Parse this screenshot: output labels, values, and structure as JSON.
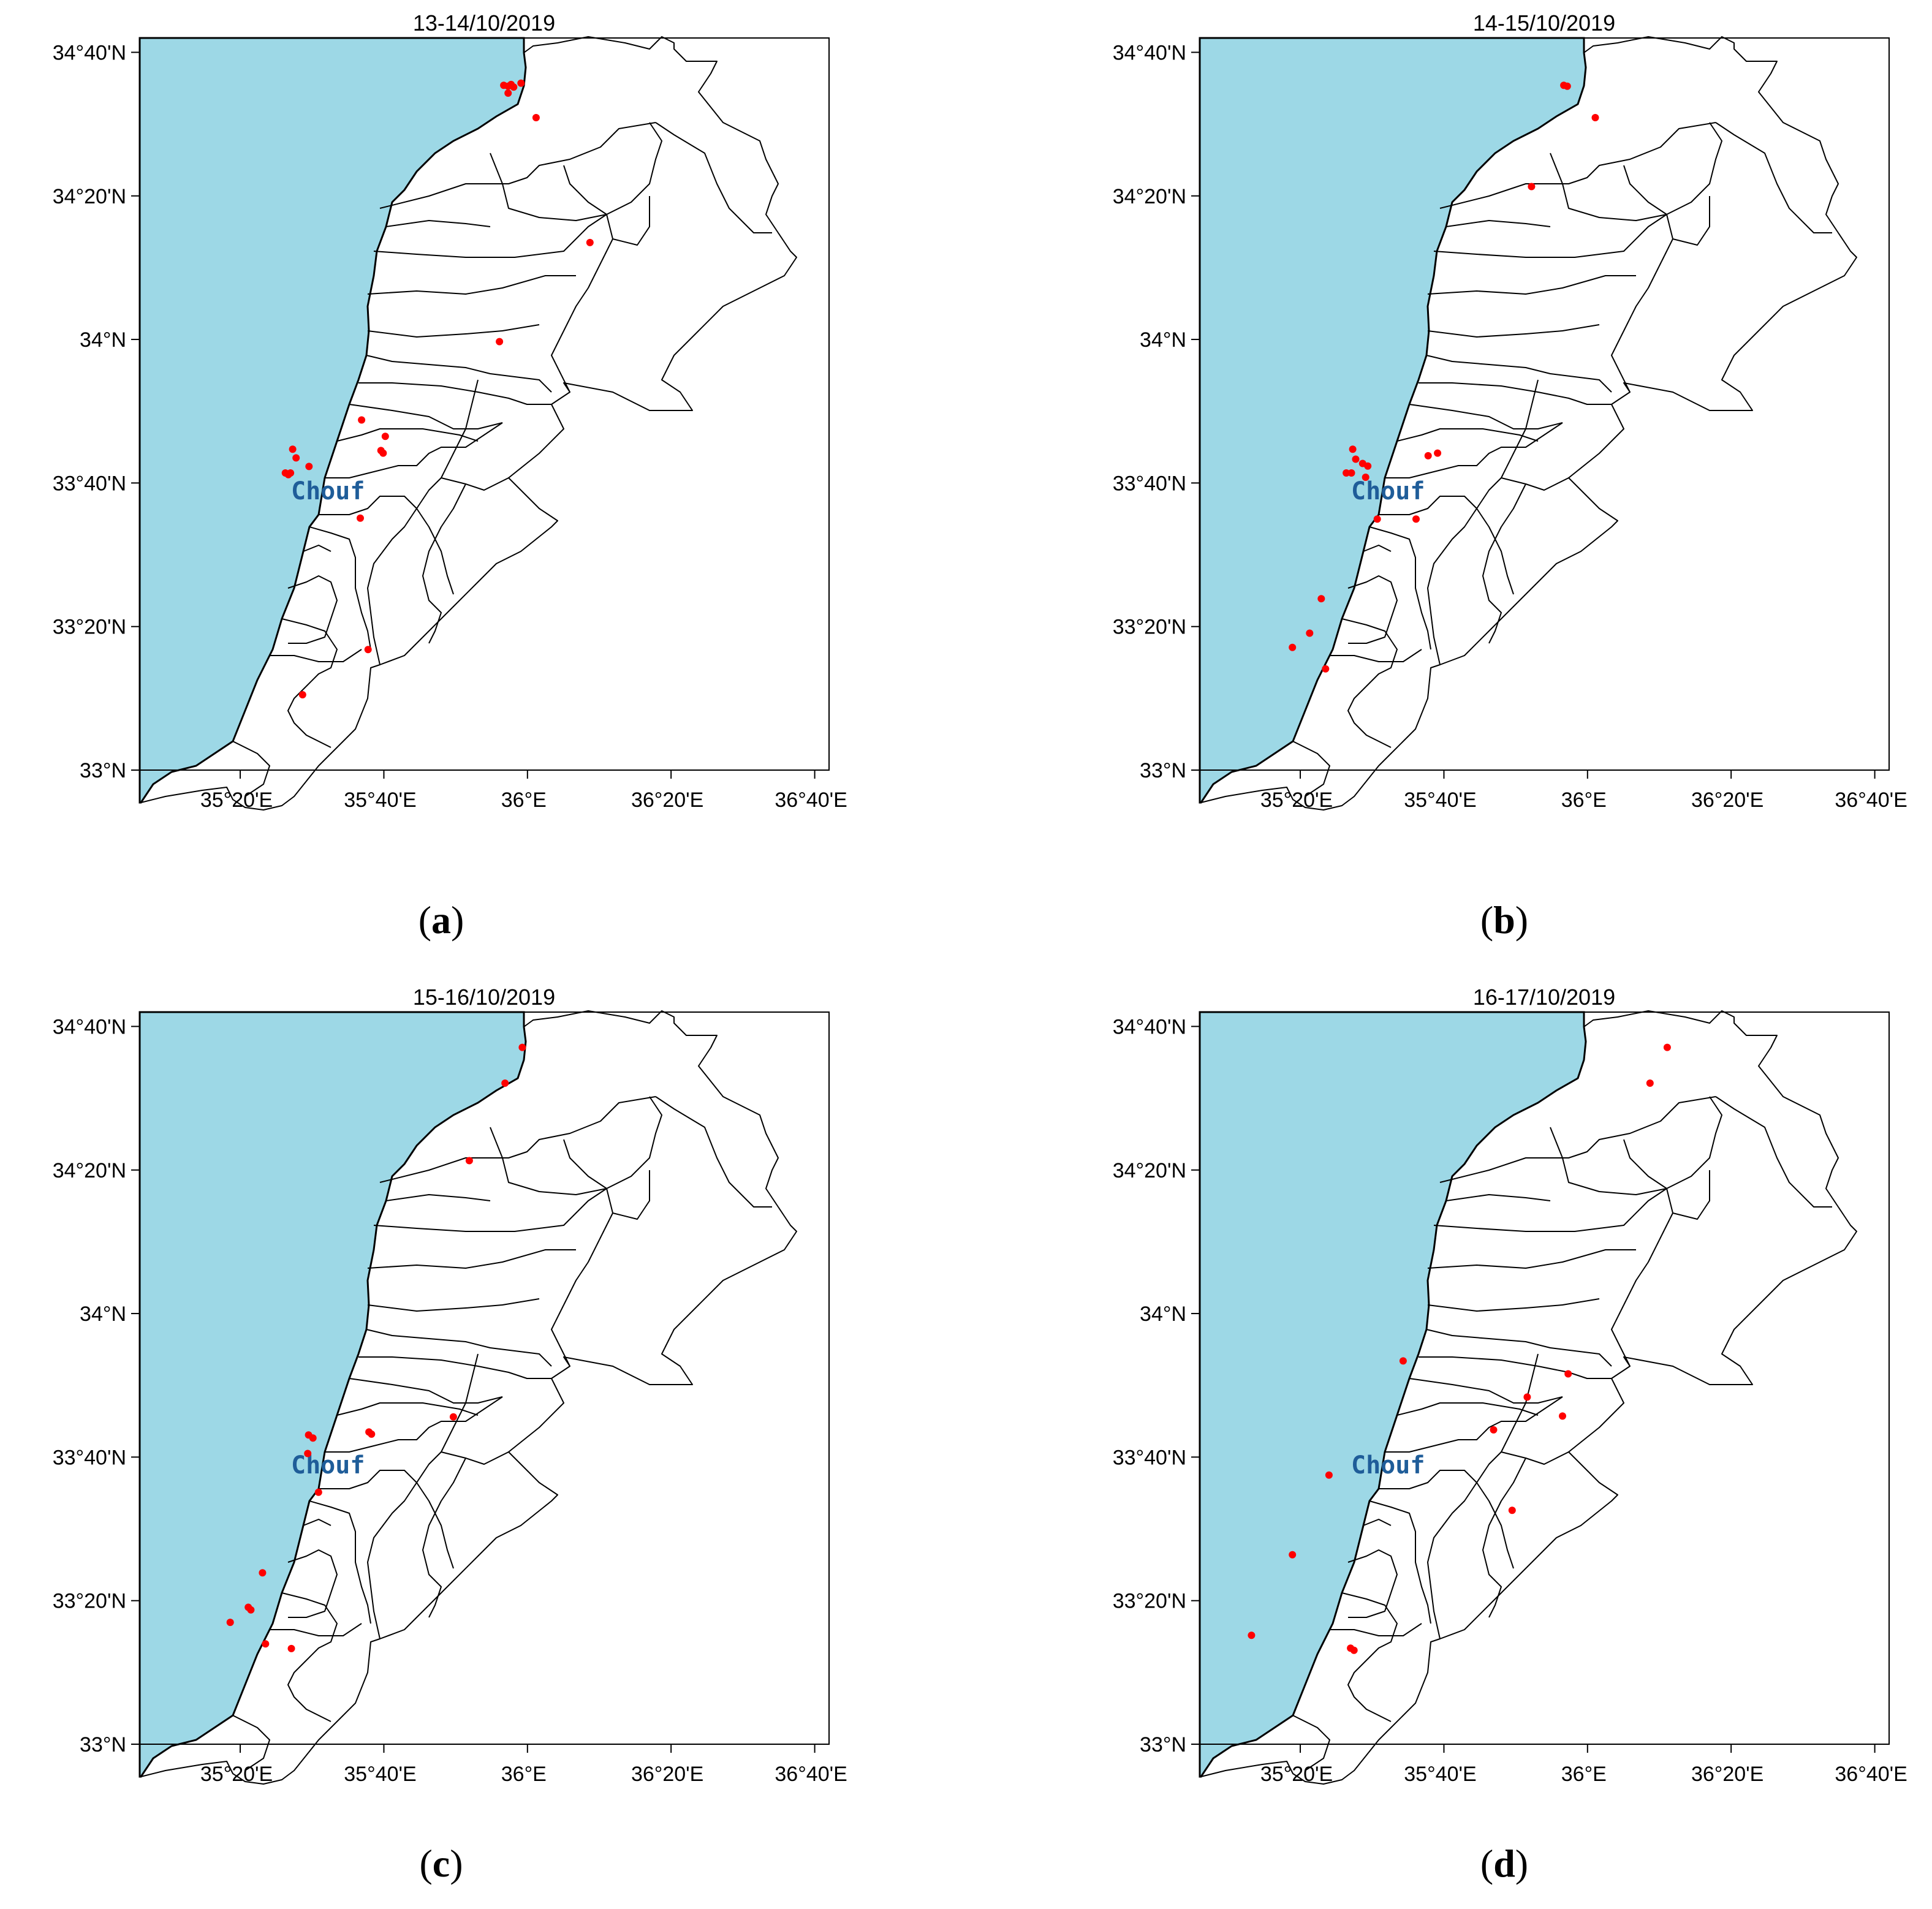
{
  "map_label": "Chouf",
  "axes": {
    "lat_ticks": [
      {
        "lat": 33.0,
        "label": "33°N"
      },
      {
        "lat": 33.3333,
        "label": "33°20'N"
      },
      {
        "lat": 33.6667,
        "label": "33°40'N"
      },
      {
        "lat": 34.0,
        "label": "34°N"
      },
      {
        "lat": 34.3333,
        "label": "34°20'N"
      },
      {
        "lat": 34.6667,
        "label": "34°40'N"
      }
    ],
    "lon_ticks": [
      {
        "lon": 35.3333,
        "label": "35°20'E"
      },
      {
        "lon": 35.6667,
        "label": "35°40'E"
      },
      {
        "lon": 36.0,
        "label": "36°E"
      },
      {
        "lon": 36.3333,
        "label": "36°20'E"
      },
      {
        "lon": 36.6667,
        "label": "36°40'E"
      }
    ],
    "lon_range": [
      35.1,
      36.7
    ],
    "lat_range": [
      33.0,
      34.7
    ]
  },
  "colors": {
    "sea": "#9dd8e6",
    "fire": "#ff0000",
    "label": "#1f5d99"
  },
  "panels": [
    {
      "title": "13-14/10/2019",
      "caption_letter": "a",
      "fires": [
        {
          "lon": 35.945,
          "lat": 34.59
        },
        {
          "lon": 35.955,
          "lat": 34.588
        },
        {
          "lon": 35.962,
          "lat": 34.592
        },
        {
          "lon": 35.968,
          "lat": 34.586
        },
        {
          "lon": 35.955,
          "lat": 34.572
        },
        {
          "lon": 35.985,
          "lat": 34.595
        },
        {
          "lon": 36.02,
          "lat": 34.515
        },
        {
          "lon": 36.145,
          "lat": 34.225
        },
        {
          "lon": 35.935,
          "lat": 33.995
        },
        {
          "lon": 35.615,
          "lat": 33.813
        },
        {
          "lon": 35.67,
          "lat": 33.775
        },
        {
          "lon": 35.66,
          "lat": 33.742
        },
        {
          "lon": 35.665,
          "lat": 33.736
        },
        {
          "lon": 35.455,
          "lat": 33.745
        },
        {
          "lon": 35.463,
          "lat": 33.725
        },
        {
          "lon": 35.45,
          "lat": 33.69
        },
        {
          "lon": 35.438,
          "lat": 33.69
        },
        {
          "lon": 35.445,
          "lat": 33.686
        },
        {
          "lon": 35.493,
          "lat": 33.705
        },
        {
          "lon": 35.612,
          "lat": 33.585
        },
        {
          "lon": 35.63,
          "lat": 33.28
        },
        {
          "lon": 35.478,
          "lat": 33.175
        }
      ]
    },
    {
      "title": "14-15/10/2019",
      "caption_letter": "b",
      "fires": [
        {
          "lon": 35.945,
          "lat": 34.59
        },
        {
          "lon": 35.953,
          "lat": 34.588
        },
        {
          "lon": 36.018,
          "lat": 34.515
        },
        {
          "lon": 35.87,
          "lat": 34.355
        },
        {
          "lon": 35.455,
          "lat": 33.745
        },
        {
          "lon": 35.462,
          "lat": 33.722
        },
        {
          "lon": 35.478,
          "lat": 33.712
        },
        {
          "lon": 35.49,
          "lat": 33.706
        },
        {
          "lon": 35.44,
          "lat": 33.69
        },
        {
          "lon": 35.452,
          "lat": 33.69
        },
        {
          "lon": 35.485,
          "lat": 33.68
        },
        {
          "lon": 35.63,
          "lat": 33.73
        },
        {
          "lon": 35.652,
          "lat": 33.736
        },
        {
          "lon": 35.512,
          "lat": 33.583
        },
        {
          "lon": 35.602,
          "lat": 33.583
        },
        {
          "lon": 35.382,
          "lat": 33.398
        },
        {
          "lon": 35.355,
          "lat": 33.318
        },
        {
          "lon": 35.315,
          "lat": 33.285
        },
        {
          "lon": 35.392,
          "lat": 33.235
        }
      ]
    },
    {
      "title": "15-16/10/2019",
      "caption_letter": "c",
      "fires": [
        {
          "lon": 35.988,
          "lat": 34.618
        },
        {
          "lon": 35.948,
          "lat": 34.535
        },
        {
          "lon": 35.865,
          "lat": 34.355
        },
        {
          "lon": 35.492,
          "lat": 33.718
        },
        {
          "lon": 35.502,
          "lat": 33.711
        },
        {
          "lon": 35.632,
          "lat": 33.725
        },
        {
          "lon": 35.638,
          "lat": 33.72
        },
        {
          "lon": 35.828,
          "lat": 33.76
        },
        {
          "lon": 35.49,
          "lat": 33.675
        },
        {
          "lon": 35.515,
          "lat": 33.585
        },
        {
          "lon": 35.385,
          "lat": 33.398
        },
        {
          "lon": 35.352,
          "lat": 33.318
        },
        {
          "lon": 35.358,
          "lat": 33.312
        },
        {
          "lon": 35.31,
          "lat": 33.283
        },
        {
          "lon": 35.392,
          "lat": 33.233
        },
        {
          "lon": 35.452,
          "lat": 33.222
        }
      ]
    },
    {
      "title": "16-17/10/2019",
      "caption_letter": "d",
      "fires": [
        {
          "lon": 36.185,
          "lat": 34.618
        },
        {
          "lon": 36.145,
          "lat": 34.535
        },
        {
          "lon": 35.572,
          "lat": 33.89
        },
        {
          "lon": 35.955,
          "lat": 33.86
        },
        {
          "lon": 35.86,
          "lat": 33.806
        },
        {
          "lon": 35.942,
          "lat": 33.762
        },
        {
          "lon": 35.782,
          "lat": 33.73
        },
        {
          "lon": 35.4,
          "lat": 33.625
        },
        {
          "lon": 35.825,
          "lat": 33.543
        },
        {
          "lon": 35.315,
          "lat": 33.44
        },
        {
          "lon": 35.22,
          "lat": 33.253
        },
        {
          "lon": 35.45,
          "lat": 33.223
        },
        {
          "lon": 35.458,
          "lat": 33.218
        }
      ]
    }
  ]
}
